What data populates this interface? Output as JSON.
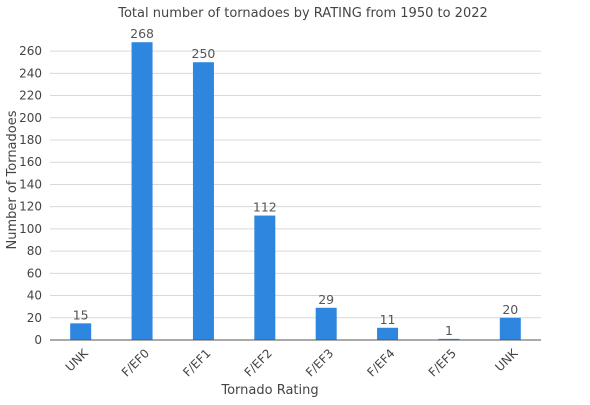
{
  "chart_data": {
    "type": "bar",
    "title": "Total number of tornadoes by RATING from 1950 to 2022",
    "xlabel": "Tornado Rating",
    "ylabel": "Number of Tornadoes",
    "categories": [
      "UNK",
      "F/EF0",
      "F/EF1",
      "F/EF2",
      "F/EF3",
      "F/EF4",
      "F/EF5",
      "UNK"
    ],
    "values": [
      15,
      268,
      250,
      112,
      29,
      11,
      1,
      20
    ],
    "ylim": [
      0,
      270
    ],
    "yticks": [
      0,
      20,
      40,
      60,
      80,
      100,
      120,
      140,
      160,
      180,
      200,
      220,
      240,
      260
    ],
    "grid": true,
    "legend": "none",
    "bar_color": "#2e86de"
  }
}
